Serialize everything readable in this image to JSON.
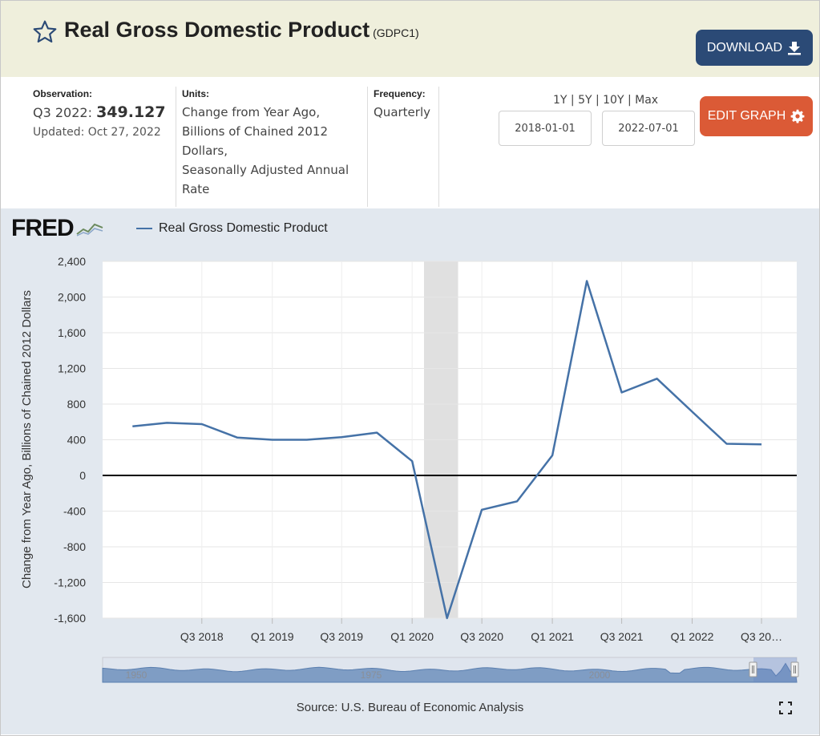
{
  "header": {
    "title": "Real Gross Domestic Product",
    "series_id": "(GDPC1)",
    "download_label": "DOWNLOAD"
  },
  "observation": {
    "label": "Observation:",
    "period": "Q3 2022:",
    "value": "349.127",
    "updated": "Updated: Oct 27, 2022"
  },
  "units": {
    "label": "Units:",
    "lines": [
      "Change from Year Ago,",
      "Billions of Chained 2012",
      "Dollars,",
      "Seasonally Adjusted Annual",
      "Rate"
    ]
  },
  "frequency": {
    "label": "Frequency:",
    "value": "Quarterly"
  },
  "range": {
    "links": "1Y | 5Y | 10Y | Max",
    "start": "2018-01-01",
    "end": "2022-07-01"
  },
  "edit_label": "EDIT GRAPH",
  "logo": "FRED",
  "source": "Source: U.S. Bureau of Economic Analysis",
  "colors": {
    "series": "#4572a7",
    "download_bg": "#2b4a76",
    "edit_bg": "#db5a36",
    "header_bg": "#efefdc",
    "chart_bg": "#e2e8ef",
    "recession": "#e0e0e0"
  },
  "chart_data": {
    "type": "line",
    "ylabel": "Change from Year Ago, Billions of Chained 2012 Dollars",
    "ylim": [
      -1600,
      2400
    ],
    "yticks": [
      -1600,
      -1200,
      -800,
      -400,
      0,
      400,
      800,
      1200,
      1600,
      2000,
      2400
    ],
    "ytick_labels": [
      "-1,600",
      "-1,200",
      "-800",
      "-400",
      "0",
      "400",
      "800",
      "1,200",
      "1,600",
      "2,000",
      "2,400"
    ],
    "xticks": [
      {
        "label": "Q3 2018",
        "x": "2018-07-01"
      },
      {
        "label": "Q1 2019",
        "x": "2019-01-01"
      },
      {
        "label": "Q3 2019",
        "x": "2019-07-01"
      },
      {
        "label": "Q1 2020",
        "x": "2020-01-01"
      },
      {
        "label": "Q3 2020",
        "x": "2020-07-01"
      },
      {
        "label": "Q1 2021",
        "x": "2021-01-01"
      },
      {
        "label": "Q3 2021",
        "x": "2021-07-01"
      },
      {
        "label": "Q1 2022",
        "x": "2022-01-01"
      },
      {
        "label": "Q3 20…",
        "x": "2022-07-01"
      }
    ],
    "recession": [
      "2020-02-01",
      "2020-04-30"
    ],
    "grid": true,
    "series": [
      {
        "name": "Real Gross Domestic Product",
        "x": [
          "2018-01-01",
          "2018-04-01",
          "2018-07-01",
          "2018-10-01",
          "2019-01-01",
          "2019-04-01",
          "2019-07-01",
          "2019-10-01",
          "2020-01-01",
          "2020-04-01",
          "2020-07-01",
          "2020-10-01",
          "2021-01-01",
          "2021-04-01",
          "2021-07-01",
          "2021-10-01",
          "2022-01-01",
          "2022-04-01",
          "2022-07-01"
        ],
        "values": [
          550,
          590,
          575,
          425,
          400,
          400,
          430,
          480,
          160,
          -1600,
          -385,
          -290,
          225,
          2180,
          930,
          1085,
          715,
          355,
          349
        ]
      }
    ],
    "navigator_labels": [
      "1950",
      "1975",
      "2000"
    ]
  }
}
